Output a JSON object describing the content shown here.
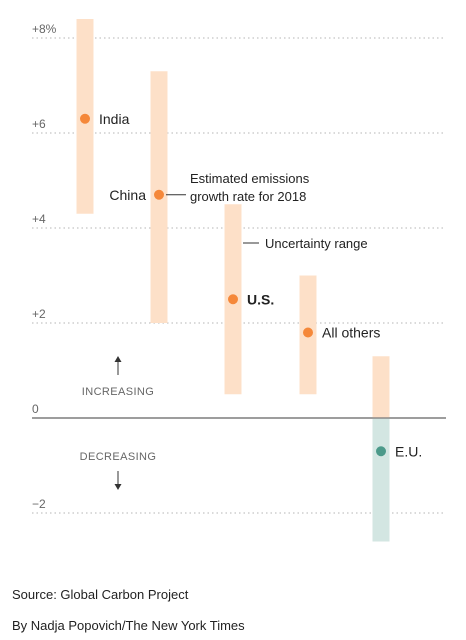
{
  "chart_data": {
    "type": "range",
    "ylim": [
      -2.6,
      8.2
    ],
    "yticks": [
      {
        "value": 8,
        "label": "+8%"
      },
      {
        "value": 6,
        "label": "+6"
      },
      {
        "value": 4,
        "label": "+4"
      },
      {
        "value": 2,
        "label": "+2"
      },
      {
        "value": 0,
        "label": "0"
      },
      {
        "value": -2,
        "label": "−2"
      }
    ],
    "grid": "dotted",
    "series": [
      {
        "label": "India",
        "estimate": 6.3,
        "low": 4.3,
        "high": 8.4,
        "bold": false
      },
      {
        "label": "China",
        "estimate": 4.7,
        "low": 2.0,
        "high": 7.3,
        "bold": false
      },
      {
        "label": "U.S.",
        "estimate": 2.5,
        "low": 0.5,
        "high": 4.5,
        "bold": true
      },
      {
        "label": "All others",
        "estimate": 1.8,
        "low": 0.5,
        "high": 3.0,
        "bold": false
      },
      {
        "label": "E.U.",
        "estimate": -0.7,
        "low": -2.6,
        "high": 1.3,
        "bold": false
      }
    ],
    "annotations": {
      "estimate_line1": "Estimated emissions",
      "estimate_line2": "growth rate for 2018",
      "range": "Uncertainty range",
      "increasing": "INCREASING",
      "decreasing": "DECREASING"
    },
    "colors": {
      "range_positive": "#fde0c8",
      "range_negative": "#d3e6e2",
      "point_positive": "#f5883a",
      "point_negative": "#4c9a8a",
      "grid": "#b5b5b5",
      "zero_line": "#777777",
      "text": "#222222",
      "muted": "#666666"
    }
  },
  "footer": {
    "source": "Source: Global Carbon Project",
    "byline": "By Nadja Popovich/The New York Times"
  }
}
